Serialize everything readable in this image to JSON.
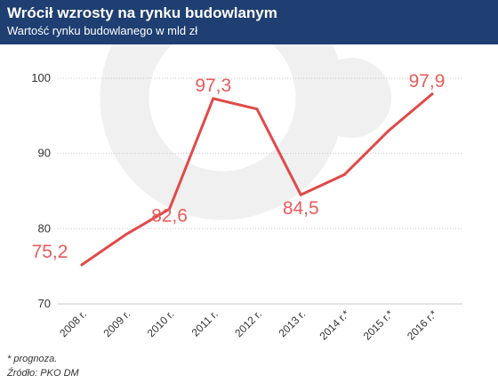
{
  "title": "Wrócił wzrosty na rynku budowlanym",
  "subtitle": "Wartość rynku budowlanego w mld zł",
  "footnote": "* prognoza.",
  "source": "Źródło: PKO DM",
  "colors": {
    "header": "#1f3f72",
    "line": "#e04a4a",
    "label": "#e85c5c",
    "grid": "#c9c9c9",
    "watermark": "#f0f0f0"
  },
  "chart_data": {
    "type": "line",
    "title": "Wrócił wzrosty na rynku budowlanym",
    "subtitle": "Wartość rynku budowlanego w mld zł",
    "categories": [
      "2008 r.",
      "2009 r.",
      "2010 r.",
      "2011 r.",
      "2012 r.",
      "2013 r.",
      "2014 r.*",
      "2015 r.*",
      "2016 r.*"
    ],
    "series": [
      {
        "values": [
          75.2,
          79.2,
          82.6,
          97.3,
          95.9,
          84.5,
          87.2,
          93.0,
          97.9
        ]
      }
    ],
    "data_labels": [
      {
        "index": 0,
        "text": "75,2"
      },
      {
        "index": 2,
        "text": "82,6"
      },
      {
        "index": 3,
        "text": "97,3"
      },
      {
        "index": 5,
        "text": "84,5"
      },
      {
        "index": 8,
        "text": "97,9"
      }
    ],
    "yticks": [
      70,
      80,
      90,
      100
    ],
    "ylim": [
      70,
      100
    ],
    "grid": true,
    "legend": "none"
  }
}
